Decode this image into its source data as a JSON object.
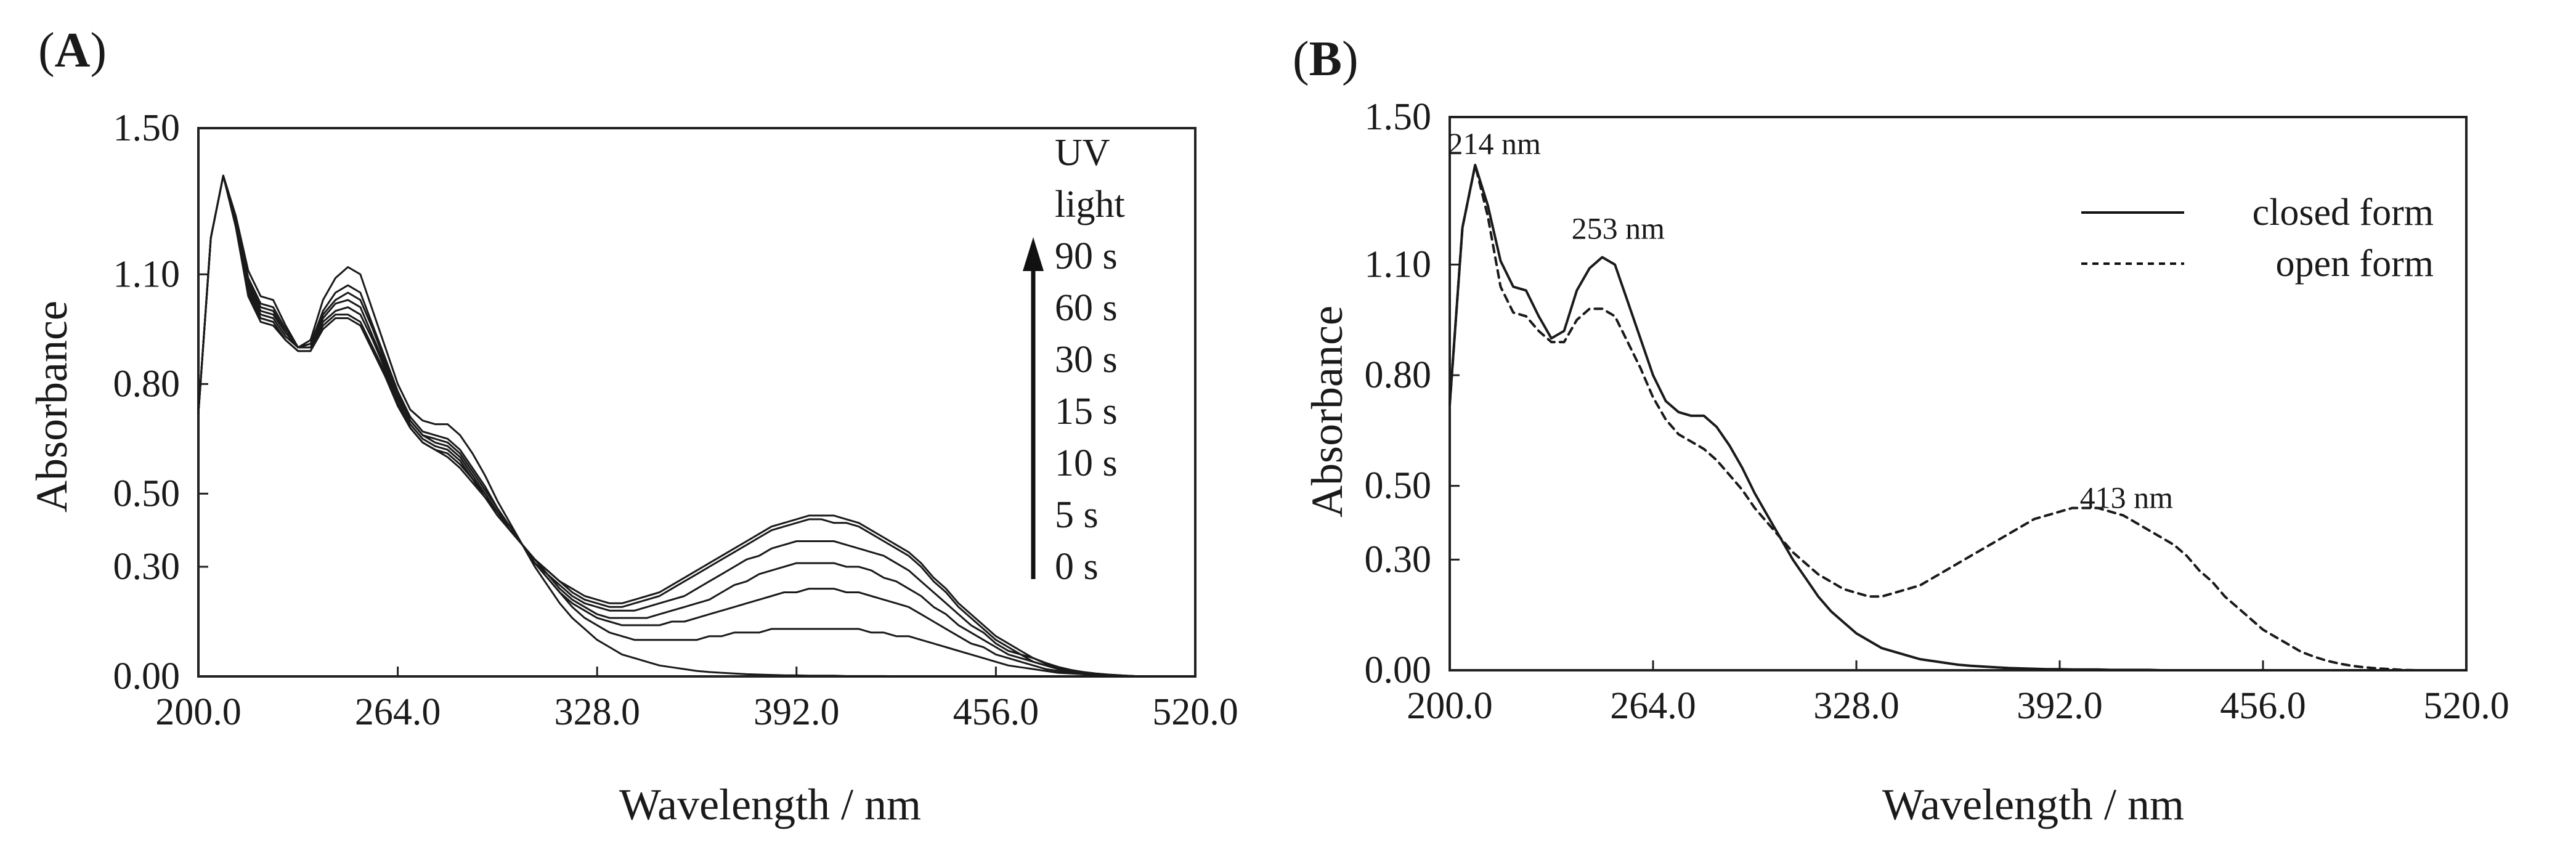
{
  "chart_data": [
    {
      "type": "line",
      "panel_label_prefix": "(",
      "panel_label_letter": "A",
      "panel_label_suffix": ")",
      "xlabel": "Wavelength / nm",
      "ylabel": "Absorbance",
      "xlim": [
        200,
        520
      ],
      "ylim": [
        0,
        1.5
      ],
      "xticks": [
        "200.0",
        "264.0",
        "328.0",
        "392.0",
        "456.0",
        "520.0"
      ],
      "yticks": [
        "0.00",
        "0.30",
        "0.50",
        "0.80",
        "1.10",
        "1.50"
      ],
      "ytick_values": [
        0,
        0.3,
        0.5,
        0.8,
        1.1,
        1.5
      ],
      "xtick_values": [
        200,
        264,
        328,
        392,
        456,
        520
      ],
      "annotation_header": [
        "UV",
        "light"
      ],
      "time_labels": [
        "90 s",
        "60 s",
        "30 s",
        "15 s",
        "10 s",
        "5 s",
        "0 s"
      ],
      "x": [
        200,
        204,
        208,
        212,
        216,
        220,
        224,
        228,
        232,
        236,
        240,
        244,
        248,
        252,
        256,
        260,
        264,
        268,
        272,
        276,
        280,
        284,
        288,
        292,
        296,
        300,
        304,
        308,
        312,
        316,
        320,
        324,
        328,
        332,
        336,
        340,
        344,
        348,
        352,
        356,
        360,
        364,
        368,
        372,
        376,
        380,
        384,
        388,
        392,
        396,
        400,
        404,
        408,
        412,
        416,
        420,
        424,
        428,
        432,
        436,
        440,
        444,
        448,
        452,
        456,
        460,
        464,
        468,
        472,
        476,
        480,
        484,
        488,
        492,
        496,
        500,
        504,
        508,
        512,
        516,
        520
      ],
      "series": [
        {
          "name": "0 s",
          "values": [
            0.72,
            1.2,
            1.37,
            1.26,
            1.11,
            1.04,
            1.03,
            0.96,
            0.9,
            0.92,
            1.03,
            1.09,
            1.12,
            1.1,
            1.0,
            0.9,
            0.8,
            0.73,
            0.7,
            0.69,
            0.69,
            0.66,
            0.61,
            0.55,
            0.48,
            0.42,
            0.36,
            0.3,
            0.25,
            0.2,
            0.16,
            0.13,
            0.1,
            0.08,
            0.06,
            0.05,
            0.04,
            0.03,
            0.025,
            0.02,
            0.015,
            0.012,
            0.01,
            0.008,
            0.006,
            0.005,
            0.004,
            0.003,
            0.003,
            0.002,
            0.002,
            0.002,
            0.001,
            0.001,
            0.001,
            0.001,
            0.0,
            0.0,
            0.0,
            0.0,
            0.0,
            0.0,
            0.0,
            0.0,
            0.0,
            0.0,
            0.0,
            0.0,
            0.0,
            0.0,
            0.0,
            0.0,
            0.0,
            0.0,
            0.0,
            0.0,
            0.0,
            0.0,
            0.0,
            0.0,
            0.0
          ]
        },
        {
          "name": "5 s",
          "values": [
            0.72,
            1.2,
            1.37,
            1.25,
            1.09,
            1.02,
            1.01,
            0.95,
            0.9,
            0.91,
            1.0,
            1.05,
            1.07,
            1.05,
            0.96,
            0.87,
            0.78,
            0.71,
            0.67,
            0.66,
            0.65,
            0.62,
            0.57,
            0.52,
            0.46,
            0.41,
            0.36,
            0.31,
            0.27,
            0.23,
            0.19,
            0.16,
            0.14,
            0.12,
            0.11,
            0.1,
            0.1,
            0.1,
            0.1,
            0.1,
            0.1,
            0.11,
            0.11,
            0.12,
            0.12,
            0.12,
            0.13,
            0.13,
            0.13,
            0.13,
            0.13,
            0.13,
            0.13,
            0.13,
            0.12,
            0.12,
            0.11,
            0.11,
            0.1,
            0.09,
            0.08,
            0.07,
            0.06,
            0.05,
            0.04,
            0.03,
            0.025,
            0.02,
            0.015,
            0.01,
            0.008,
            0.006,
            0.004,
            0.003,
            0.002,
            0.001,
            0.0,
            0.0,
            0.0,
            0.0,
            0.0
          ]
        },
        {
          "name": "10 s",
          "values": [
            0.72,
            1.2,
            1.37,
            1.25,
            1.08,
            1.01,
            1.0,
            0.94,
            0.9,
            0.91,
            0.99,
            1.03,
            1.05,
            1.03,
            0.95,
            0.86,
            0.77,
            0.7,
            0.66,
            0.65,
            0.64,
            0.61,
            0.56,
            0.51,
            0.46,
            0.41,
            0.36,
            0.31,
            0.27,
            0.23,
            0.2,
            0.18,
            0.16,
            0.15,
            0.14,
            0.14,
            0.14,
            0.14,
            0.15,
            0.15,
            0.16,
            0.17,
            0.18,
            0.19,
            0.2,
            0.21,
            0.22,
            0.23,
            0.23,
            0.24,
            0.24,
            0.24,
            0.23,
            0.23,
            0.22,
            0.21,
            0.2,
            0.19,
            0.17,
            0.15,
            0.13,
            0.11,
            0.09,
            0.08,
            0.06,
            0.05,
            0.04,
            0.03,
            0.02,
            0.015,
            0.01,
            0.007,
            0.005,
            0.003,
            0.002,
            0.001,
            0.0,
            0.0,
            0.0,
            0.0,
            0.0
          ]
        },
        {
          "name": "15 s",
          "values": [
            0.72,
            1.2,
            1.37,
            1.24,
            1.07,
            1.0,
            0.99,
            0.94,
            0.9,
            0.9,
            0.98,
            1.02,
            1.03,
            1.01,
            0.93,
            0.85,
            0.76,
            0.7,
            0.66,
            0.64,
            0.63,
            0.6,
            0.55,
            0.5,
            0.45,
            0.41,
            0.36,
            0.31,
            0.28,
            0.24,
            0.21,
            0.19,
            0.17,
            0.16,
            0.16,
            0.16,
            0.16,
            0.17,
            0.18,
            0.19,
            0.2,
            0.21,
            0.23,
            0.25,
            0.26,
            0.28,
            0.29,
            0.3,
            0.31,
            0.31,
            0.31,
            0.31,
            0.3,
            0.3,
            0.29,
            0.27,
            0.26,
            0.24,
            0.22,
            0.19,
            0.17,
            0.14,
            0.12,
            0.1,
            0.08,
            0.06,
            0.05,
            0.04,
            0.03,
            0.02,
            0.014,
            0.01,
            0.007,
            0.004,
            0.002,
            0.001,
            0.0,
            0.0,
            0.0,
            0.0,
            0.0
          ]
        },
        {
          "name": "30 s",
          "values": [
            0.72,
            1.2,
            1.37,
            1.24,
            1.06,
            0.99,
            0.98,
            0.93,
            0.9,
            0.9,
            0.97,
            1.0,
            1.01,
            0.99,
            0.92,
            0.84,
            0.75,
            0.69,
            0.65,
            0.63,
            0.62,
            0.59,
            0.54,
            0.5,
            0.45,
            0.4,
            0.36,
            0.32,
            0.28,
            0.25,
            0.22,
            0.2,
            0.19,
            0.18,
            0.18,
            0.18,
            0.19,
            0.2,
            0.21,
            0.22,
            0.24,
            0.26,
            0.28,
            0.3,
            0.32,
            0.33,
            0.35,
            0.36,
            0.37,
            0.37,
            0.37,
            0.37,
            0.36,
            0.35,
            0.34,
            0.33,
            0.31,
            0.29,
            0.26,
            0.23,
            0.2,
            0.17,
            0.14,
            0.12,
            0.09,
            0.07,
            0.06,
            0.04,
            0.03,
            0.02,
            0.016,
            0.011,
            0.007,
            0.004,
            0.002,
            0.001,
            0.0,
            0.0,
            0.0,
            0.0,
            0.0
          ]
        },
        {
          "name": "60 s",
          "values": [
            0.72,
            1.2,
            1.37,
            1.23,
            1.05,
            0.98,
            0.97,
            0.92,
            0.89,
            0.89,
            0.96,
            0.99,
            0.99,
            0.97,
            0.9,
            0.83,
            0.74,
            0.68,
            0.64,
            0.62,
            0.61,
            0.58,
            0.54,
            0.49,
            0.45,
            0.4,
            0.36,
            0.32,
            0.29,
            0.26,
            0.23,
            0.21,
            0.2,
            0.19,
            0.19,
            0.2,
            0.21,
            0.22,
            0.24,
            0.26,
            0.28,
            0.3,
            0.32,
            0.34,
            0.36,
            0.38,
            0.4,
            0.41,
            0.42,
            0.43,
            0.43,
            0.42,
            0.42,
            0.41,
            0.39,
            0.37,
            0.35,
            0.33,
            0.3,
            0.26,
            0.23,
            0.19,
            0.16,
            0.13,
            0.1,
            0.08,
            0.06,
            0.05,
            0.035,
            0.025,
            0.017,
            0.012,
            0.008,
            0.005,
            0.003,
            0.001,
            0.0,
            0.0,
            0.0,
            0.0,
            0.0
          ]
        },
        {
          "name": "90 s",
          "values": [
            0.72,
            1.2,
            1.37,
            1.23,
            1.04,
            0.97,
            0.96,
            0.92,
            0.89,
            0.89,
            0.95,
            0.98,
            0.98,
            0.96,
            0.89,
            0.82,
            0.74,
            0.68,
            0.64,
            0.62,
            0.6,
            0.57,
            0.53,
            0.49,
            0.44,
            0.4,
            0.36,
            0.32,
            0.29,
            0.26,
            0.24,
            0.22,
            0.21,
            0.2,
            0.2,
            0.21,
            0.22,
            0.23,
            0.25,
            0.27,
            0.29,
            0.31,
            0.33,
            0.35,
            0.37,
            0.39,
            0.41,
            0.42,
            0.43,
            0.44,
            0.44,
            0.44,
            0.43,
            0.42,
            0.4,
            0.38,
            0.36,
            0.34,
            0.31,
            0.27,
            0.24,
            0.2,
            0.17,
            0.14,
            0.11,
            0.09,
            0.07,
            0.05,
            0.037,
            0.026,
            0.018,
            0.012,
            0.008,
            0.005,
            0.003,
            0.001,
            0.0,
            0.0,
            0.0,
            0.0,
            0.0
          ]
        }
      ]
    },
    {
      "type": "line",
      "panel_label_prefix": "(",
      "panel_label_letter": "B",
      "panel_label_suffix": ")",
      "xlabel": "Wavelength / nm",
      "ylabel": "Absorbance",
      "xlim": [
        200,
        520
      ],
      "ylim": [
        0,
        1.5
      ],
      "xticks": [
        "200.0",
        "264.0",
        "328.0",
        "392.0",
        "456.0",
        "520.0"
      ],
      "yticks": [
        "0.00",
        "0.30",
        "0.50",
        "0.80",
        "1.10",
        "1.50"
      ],
      "ytick_values": [
        0,
        0.3,
        0.5,
        0.8,
        1.1,
        1.5
      ],
      "xtick_values": [
        200,
        264,
        328,
        392,
        456,
        520
      ],
      "legend_position": "top-right",
      "annotations": [
        {
          "text": "214 nm",
          "x": 214,
          "y": 1.4
        },
        {
          "text": "253 nm",
          "x": 253,
          "y": 1.17
        },
        {
          "text": "413 nm",
          "x": 413,
          "y": 0.44
        }
      ],
      "x": [
        200,
        204,
        208,
        212,
        216,
        220,
        224,
        228,
        232,
        236,
        240,
        244,
        248,
        252,
        256,
        260,
        264,
        268,
        272,
        276,
        280,
        284,
        288,
        292,
        296,
        300,
        304,
        308,
        312,
        316,
        320,
        324,
        328,
        332,
        336,
        340,
        344,
        348,
        352,
        356,
        360,
        364,
        368,
        372,
        376,
        380,
        384,
        388,
        392,
        396,
        400,
        404,
        408,
        412,
        416,
        420,
        424,
        428,
        432,
        436,
        440,
        444,
        448,
        452,
        456,
        460,
        464,
        468,
        472,
        476,
        480,
        484,
        488,
        492,
        496,
        500,
        504,
        508,
        512,
        516,
        520
      ],
      "series": [
        {
          "name": "closed form",
          "style": "solid",
          "values": [
            0.72,
            1.2,
            1.37,
            1.26,
            1.11,
            1.04,
            1.03,
            0.96,
            0.9,
            0.92,
            1.03,
            1.09,
            1.12,
            1.1,
            1.0,
            0.9,
            0.8,
            0.73,
            0.7,
            0.69,
            0.69,
            0.66,
            0.61,
            0.55,
            0.48,
            0.42,
            0.36,
            0.3,
            0.25,
            0.2,
            0.16,
            0.13,
            0.1,
            0.08,
            0.06,
            0.05,
            0.04,
            0.03,
            0.025,
            0.02,
            0.015,
            0.012,
            0.01,
            0.008,
            0.006,
            0.005,
            0.004,
            0.003,
            0.003,
            0.002,
            0.002,
            0.002,
            0.001,
            0.001,
            0.001,
            0.001,
            0.0,
            0.0,
            0.0,
            0.0,
            0.0,
            0.0,
            0.0,
            0.0,
            0.0,
            0.0,
            0.0,
            0.0,
            0.0,
            0.0,
            0.0,
            0.0,
            0.0,
            0.0,
            0.0,
            0.0,
            0.0,
            0.0,
            0.0,
            0.0,
            0.0
          ]
        },
        {
          "name": "open form",
          "style": "dashed",
          "values": [
            0.72,
            1.2,
            1.37,
            1.23,
            1.04,
            0.97,
            0.96,
            0.92,
            0.89,
            0.89,
            0.95,
            0.98,
            0.98,
            0.96,
            0.89,
            0.82,
            0.74,
            0.68,
            0.64,
            0.62,
            0.6,
            0.57,
            0.53,
            0.49,
            0.44,
            0.4,
            0.36,
            0.32,
            0.29,
            0.26,
            0.24,
            0.22,
            0.21,
            0.2,
            0.2,
            0.21,
            0.22,
            0.23,
            0.25,
            0.27,
            0.29,
            0.31,
            0.33,
            0.35,
            0.37,
            0.39,
            0.41,
            0.42,
            0.43,
            0.44,
            0.44,
            0.44,
            0.43,
            0.42,
            0.4,
            0.38,
            0.36,
            0.34,
            0.31,
            0.27,
            0.24,
            0.2,
            0.17,
            0.14,
            0.11,
            0.09,
            0.07,
            0.05,
            0.037,
            0.026,
            0.018,
            0.012,
            0.008,
            0.005,
            0.003,
            0.001,
            0.0,
            0.0,
            0.0,
            0.0,
            0.0
          ]
        }
      ]
    }
  ]
}
